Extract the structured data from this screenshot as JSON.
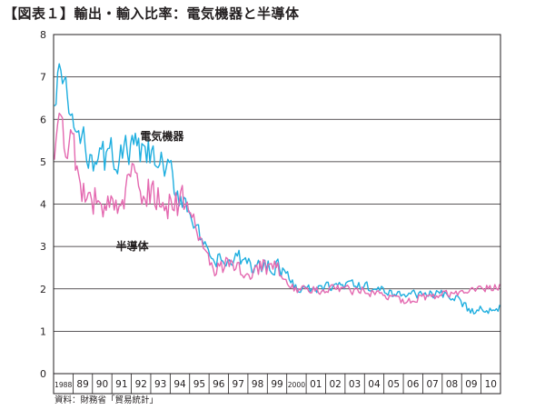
{
  "header": {
    "title": "【図表１】輸出・輸入比率：電気機器と半導体"
  },
  "source_note": "資料：財務省「貿易統計」",
  "colors": {
    "denki": "#1eaedf",
    "handotai": "#e469b0",
    "axis": "#231f20",
    "grid": "#231f20"
  },
  "chart_data": {
    "type": "line",
    "title": "",
    "xlabel": "",
    "ylabel": "",
    "ylim": [
      0,
      8
    ],
    "yticks": [
      0,
      1,
      2,
      3,
      4,
      5,
      6,
      7,
      8
    ],
    "grid": "horizontal",
    "x_tick_labels": [
      "1988",
      "89",
      "90",
      "91",
      "92",
      "93",
      "94",
      "95",
      "96",
      "97",
      "98",
      "99",
      "2000",
      "01",
      "02",
      "03",
      "04",
      "05",
      "06",
      "07",
      "08",
      "09",
      "10"
    ],
    "x_unit": "month",
    "x_start": "1988-01",
    "x_end": "2010-12",
    "series": [
      {
        "name": "電気機器",
        "color": "#1eaedf",
        "anchors": [
          [
            "1988-01",
            6.0
          ],
          [
            "1988-03",
            7.3
          ],
          [
            "1988-05",
            7.1
          ],
          [
            "1988-07",
            6.7
          ],
          [
            "1988-10",
            6.3
          ],
          [
            "1989-01",
            5.8
          ],
          [
            "1989-06",
            5.4
          ],
          [
            "1990-01",
            5.2
          ],
          [
            "1990-06",
            5.0
          ],
          [
            "1991-01",
            5.2
          ],
          [
            "1991-06",
            5.1
          ],
          [
            "1992-01",
            5.3
          ],
          [
            "1992-06",
            5.2
          ],
          [
            "1993-01",
            5.1
          ],
          [
            "1993-06",
            4.9
          ],
          [
            "1994-01",
            4.6
          ],
          [
            "1994-06",
            4.3
          ],
          [
            "1994-12",
            3.9
          ],
          [
            "1995-04",
            3.5
          ],
          [
            "1995-08",
            3.1
          ],
          [
            "1995-12",
            2.7
          ],
          [
            "1996-06",
            2.65
          ],
          [
            "1997-01",
            2.6
          ],
          [
            "1997-06",
            2.7
          ],
          [
            "1998-01",
            2.6
          ],
          [
            "1998-06",
            2.5
          ],
          [
            "1999-01",
            2.55
          ],
          [
            "1999-06",
            2.6
          ],
          [
            "2000-01",
            2.3
          ],
          [
            "2000-06",
            2.05
          ],
          [
            "2001-01",
            2.0
          ],
          [
            "2001-06",
            1.95
          ],
          [
            "2002-01",
            2.05
          ],
          [
            "2003-01",
            2.1
          ],
          [
            "2004-01",
            2.05
          ],
          [
            "2005-01",
            1.95
          ],
          [
            "2006-01",
            1.85
          ],
          [
            "2007-01",
            1.9
          ],
          [
            "2008-01",
            1.85
          ],
          [
            "2008-09",
            1.75
          ],
          [
            "2009-03",
            1.55
          ],
          [
            "2009-09",
            1.5
          ],
          [
            "2010-06",
            1.5
          ],
          [
            "2010-12",
            1.6
          ]
        ]
      },
      {
        "name": "半導体",
        "color": "#e469b0",
        "anchors": [
          [
            "1988-01",
            4.8
          ],
          [
            "1988-04",
            5.7
          ],
          [
            "1988-08",
            5.6
          ],
          [
            "1989-01",
            5.2
          ],
          [
            "1989-06",
            4.5
          ],
          [
            "1990-01",
            4.2
          ],
          [
            "1990-06",
            3.8
          ],
          [
            "1991-01",
            4.2
          ],
          [
            "1991-06",
            3.9
          ],
          [
            "1992-01",
            4.5
          ],
          [
            "1992-06",
            4.3
          ],
          [
            "1993-01",
            4.3
          ],
          [
            "1993-06",
            4.1
          ],
          [
            "1994-01",
            4.0
          ],
          [
            "1994-06",
            4.1
          ],
          [
            "1995-01",
            3.9
          ],
          [
            "1995-06",
            3.3
          ],
          [
            "1995-12",
            2.6
          ],
          [
            "1996-06",
            2.5
          ],
          [
            "1997-01",
            2.6
          ],
          [
            "1997-06",
            2.55
          ],
          [
            "1998-01",
            2.45
          ],
          [
            "1998-06",
            2.5
          ],
          [
            "1999-01",
            2.5
          ],
          [
            "1999-06",
            2.45
          ],
          [
            "2000-01",
            2.15
          ],
          [
            "2000-06",
            2.0
          ],
          [
            "2001-01",
            1.95
          ],
          [
            "2002-01",
            2.0
          ],
          [
            "2003-01",
            2.0
          ],
          [
            "2004-01",
            1.95
          ],
          [
            "2005-01",
            1.8
          ],
          [
            "2006-01",
            1.75
          ],
          [
            "2007-01",
            1.8
          ],
          [
            "2008-01",
            1.85
          ],
          [
            "2009-01",
            1.95
          ],
          [
            "2010-01",
            2.0
          ],
          [
            "2010-12",
            2.1
          ]
        ]
      }
    ],
    "annotations": [
      {
        "text": "電気機器",
        "series": "電気機器",
        "at": [
          "1992-06",
          5.6
        ]
      },
      {
        "text": "半導体",
        "series": "半導体",
        "at": [
          "1991-03",
          3.0
        ]
      }
    ]
  }
}
